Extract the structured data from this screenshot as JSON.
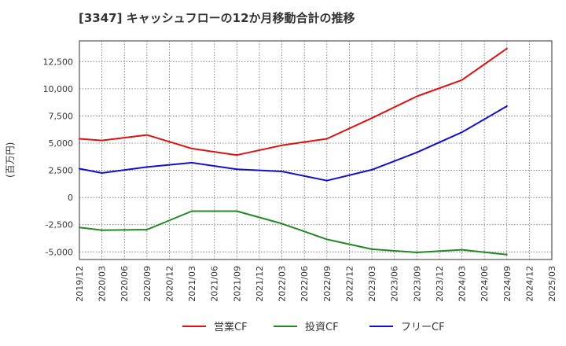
{
  "chart_data": {
    "type": "line",
    "title": "[3347]  キャッシュフローの12か月移動合計の推移",
    "ylabel": "(百万円)",
    "xlabel": "",
    "ylim": [
      -5700,
      14400
    ],
    "yticks": [
      -5000,
      -2500,
      0,
      2500,
      5000,
      7500,
      10000,
      12500
    ],
    "ytick_labels": [
      "-5,000",
      "-2,500",
      "0",
      "2,500",
      "5,000",
      "7,500",
      "10,000",
      "12,500"
    ],
    "x_labels": [
      "2019/12",
      "2020/03",
      "2020/06",
      "2020/09",
      "2020/12",
      "2021/03",
      "2021/06",
      "2021/09",
      "2021/12",
      "2022/03",
      "2022/06",
      "2022/09",
      "2022/12",
      "2023/03",
      "2023/06",
      "2023/09",
      "2023/12",
      "2024/03",
      "2024/06",
      "2024/09",
      "2024/12",
      "2025/03"
    ],
    "grid": true,
    "legend_position": "bottom",
    "series": [
      {
        "name": "営業CF",
        "color": "#dd1111",
        "x": [
          "2019/12",
          "2020/03",
          "2020/09",
          "2021/03",
          "2021/09",
          "2022/03",
          "2022/09",
          "2023/03",
          "2023/09",
          "2024/03",
          "2024/09"
        ],
        "values": [
          5400,
          5250,
          5750,
          4500,
          3900,
          4800,
          5400,
          7300,
          9300,
          10800,
          13700
        ]
      },
      {
        "name": "投資CF",
        "color": "#228822",
        "x": [
          "2019/12",
          "2020/03",
          "2020/09",
          "2021/03",
          "2021/09",
          "2022/03",
          "2022/09",
          "2023/03",
          "2023/09",
          "2024/03",
          "2024/09"
        ],
        "values": [
          -2750,
          -3000,
          -2950,
          -1250,
          -1250,
          -2400,
          -3850,
          -4750,
          -5050,
          -4800,
          -5250
        ]
      },
      {
        "name": "フリーCF",
        "color": "#1111cc",
        "x": [
          "2019/12",
          "2020/03",
          "2020/09",
          "2021/03",
          "2021/09",
          "2022/03",
          "2022/09",
          "2023/03",
          "2023/09",
          "2024/03",
          "2024/09"
        ],
        "values": [
          2650,
          2250,
          2800,
          3200,
          2600,
          2400,
          1550,
          2550,
          4150,
          6000,
          8400
        ]
      }
    ]
  }
}
